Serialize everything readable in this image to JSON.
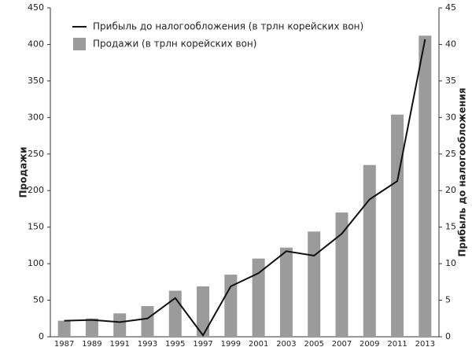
{
  "chart_data": {
    "type": "bar",
    "categories": [
      "1987",
      "1989",
      "1991",
      "1993",
      "1995",
      "1997",
      "1999",
      "2001",
      "2003",
      "2005",
      "2007",
      "2009",
      "2011",
      "2013"
    ],
    "series": [
      {
        "name": "Прибыль до налогообложения (в трлн корейских вон)",
        "type": "line",
        "axis": "y2",
        "color": "#111111",
        "values": [
          2.2,
          2.3,
          2.0,
          2.5,
          5.3,
          0.2,
          6.9,
          8.7,
          11.7,
          11.1,
          14.1,
          18.8,
          21.3,
          40.7
        ]
      },
      {
        "name": "Продажи (в трлн корейских вон)",
        "type": "bar",
        "color": "#9b9b9b",
        "values": [
          22,
          25,
          32,
          42,
          63,
          69,
          85,
          107,
          122,
          144,
          170,
          235,
          304,
          412
        ]
      }
    ],
    "ylabel": "Продажи",
    "y2label": "Прибыль до налогообложения",
    "ylim": [
      0,
      450
    ],
    "yticks": [
      0,
      50,
      100,
      150,
      200,
      250,
      300,
      350,
      400,
      450
    ],
    "y2lim": [
      0,
      45
    ],
    "y2ticks": [
      0,
      5,
      10,
      15,
      20,
      25,
      30,
      35,
      40,
      45
    ],
    "grid": false,
    "legend": "upper left"
  }
}
